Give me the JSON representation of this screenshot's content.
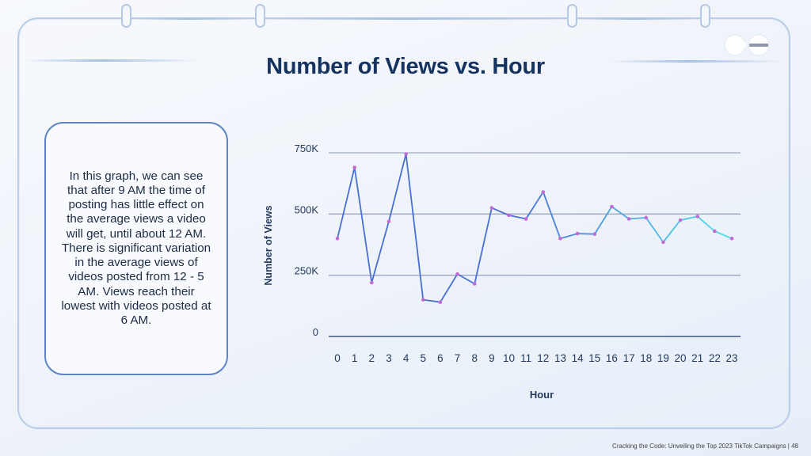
{
  "slide": {
    "title": "Number of Views vs. Hour",
    "description": "In this graph, we can see that after 9 AM the time of posting has little effect on the average views a video will get, until about 12 AM. There is significant variation in the average views of videos posted from 12 - 5 AM. Views reach their lowest with videos posted at 6 AM.",
    "footer": "Cracking the Code: Unveiling the Top 2023 TikTok Campaigns |  48"
  },
  "colors": {
    "title": "#16325f",
    "line_start": "#4a6fd6",
    "line_end": "#4fe0ec",
    "marker": "#c36bd4",
    "gridline": "#5d6f92",
    "axis_text": "#253a5e",
    "border": "#b9cde8"
  },
  "chart_data": {
    "type": "line",
    "title": "",
    "xlabel": "Hour",
    "ylabel": "Number of Views",
    "x": [
      0,
      1,
      2,
      3,
      4,
      5,
      6,
      7,
      8,
      9,
      10,
      11,
      12,
      13,
      14,
      15,
      16,
      17,
      18,
      19,
      20,
      21,
      22,
      23
    ],
    "x_tick_labels": [
      "0",
      "1",
      "2",
      "3",
      "4",
      "5",
      "6",
      "7",
      "8",
      "9",
      "10",
      "11",
      "12",
      "13",
      "14",
      "15",
      "16",
      "17",
      "18",
      "19",
      "20",
      "21",
      "22",
      "23"
    ],
    "y_ticks": [
      0,
      250000,
      500000,
      750000
    ],
    "y_tick_labels": [
      "0",
      "250K",
      "500K",
      "750K"
    ],
    "ylim": [
      0,
      750000
    ],
    "series": [
      {
        "values": [
          400000,
          690000,
          220000,
          470000,
          745000,
          150000,
          140000,
          255000,
          215000,
          525000,
          495000,
          480000,
          590000,
          400000,
          420000,
          418000,
          530000,
          480000,
          485000,
          385000,
          475000,
          490000,
          430000,
          400000
        ]
      }
    ],
    "grid": "horizontal",
    "legend": "none"
  }
}
